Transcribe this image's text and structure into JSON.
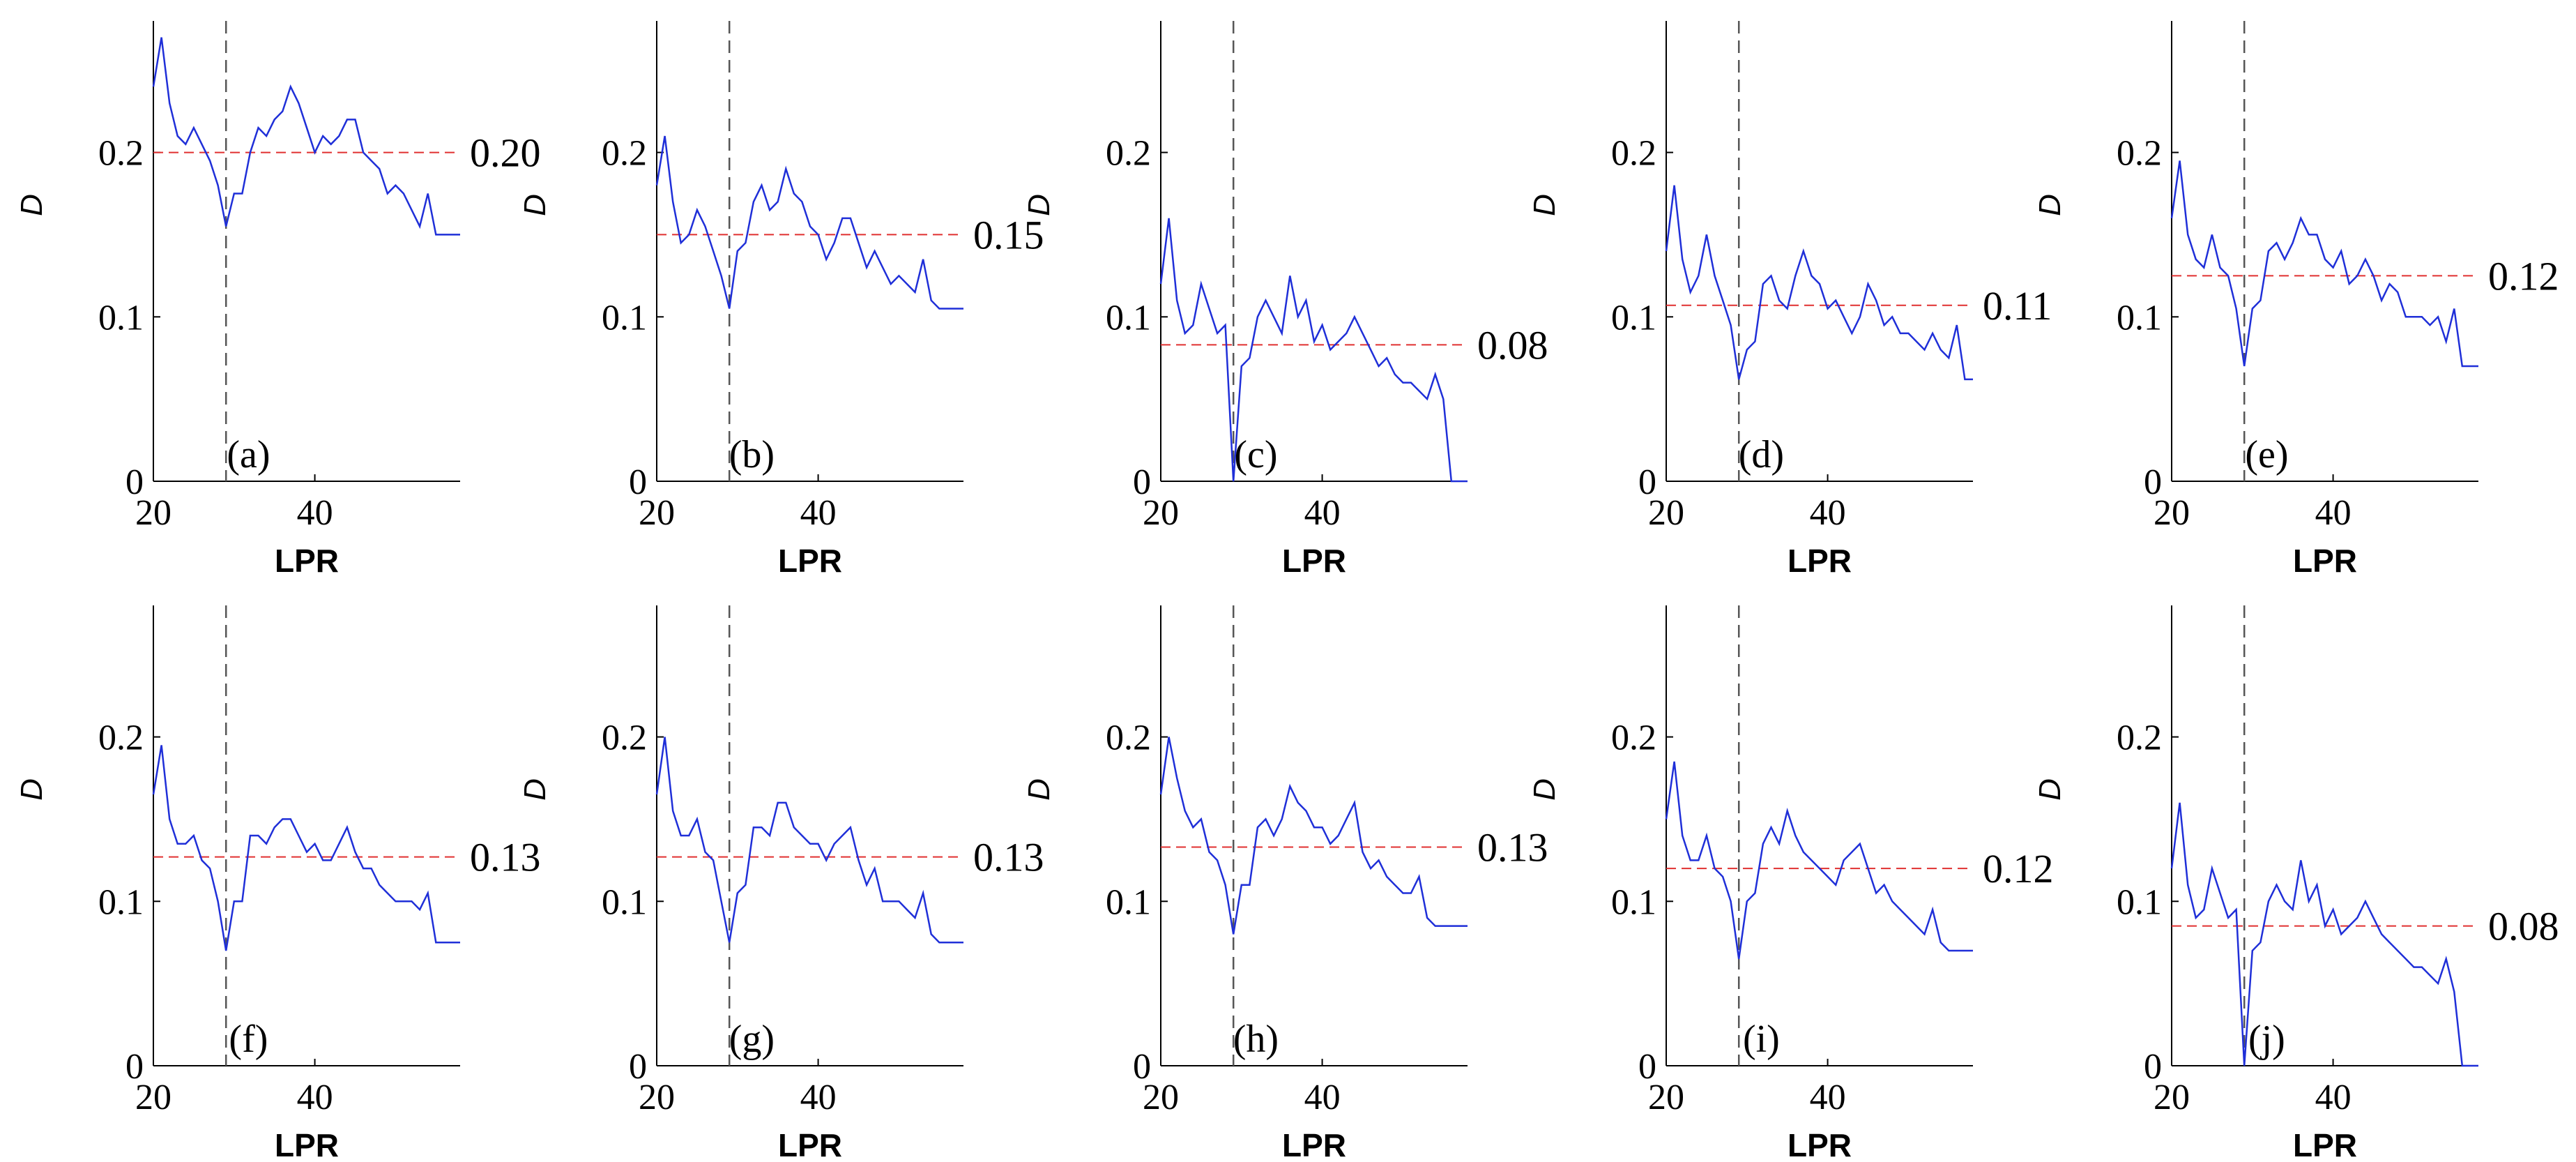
{
  "chart_data": [
    {
      "type": "line",
      "panel_label": "(a)",
      "ref_label": "0.20",
      "ref_y": 0.2,
      "vline_x": 29,
      "xlabel": "LPR",
      "ylabel": "D",
      "xlim": [
        20,
        58
      ],
      "ylim": [
        0,
        0.28
      ],
      "xticks": [
        "20",
        "40"
      ],
      "yticks": [
        "0",
        "0.1",
        "0.2"
      ],
      "xtick_values": [
        20,
        40
      ],
      "ytick_values": [
        0,
        0.1,
        0.2
      ],
      "x": [
        20,
        21,
        22,
        23,
        24,
        25,
        26,
        27,
        28,
        29,
        30,
        31,
        32,
        33,
        34,
        35,
        36,
        37,
        38,
        39,
        40,
        41,
        42,
        43,
        44,
        45,
        46,
        47,
        48,
        49,
        50,
        51,
        52,
        53,
        54,
        55,
        56,
        57,
        58
      ],
      "values": [
        0.24,
        0.27,
        0.23,
        0.21,
        0.205,
        0.215,
        0.205,
        0.195,
        0.18,
        0.155,
        0.175,
        0.175,
        0.2,
        0.215,
        0.21,
        0.22,
        0.225,
        0.24,
        0.23,
        0.215,
        0.2,
        0.21,
        0.205,
        0.21,
        0.22,
        0.22,
        0.2,
        0.195,
        0.19,
        0.175,
        0.18,
        0.175,
        0.165,
        0.155,
        0.175,
        0.15,
        0.15,
        0.15,
        0.15
      ]
    },
    {
      "type": "line",
      "panel_label": "(b)",
      "ref_label": "0.15",
      "ref_y": 0.15,
      "vline_x": 29,
      "xlabel": "LPR",
      "ylabel": "D",
      "xlim": [
        20,
        58
      ],
      "ylim": [
        0,
        0.28
      ],
      "xticks": [
        "20",
        "40"
      ],
      "yticks": [
        "0",
        "0.1",
        "0.2"
      ],
      "xtick_values": [
        20,
        40
      ],
      "ytick_values": [
        0,
        0.1,
        0.2
      ],
      "x": [
        20,
        21,
        22,
        23,
        24,
        25,
        26,
        27,
        28,
        29,
        30,
        31,
        32,
        33,
        34,
        35,
        36,
        37,
        38,
        39,
        40,
        41,
        42,
        43,
        44,
        45,
        46,
        47,
        48,
        49,
        50,
        51,
        52,
        53,
        54,
        55,
        56,
        57,
        58
      ],
      "values": [
        0.18,
        0.21,
        0.17,
        0.145,
        0.15,
        0.165,
        0.155,
        0.14,
        0.125,
        0.105,
        0.14,
        0.145,
        0.17,
        0.18,
        0.165,
        0.17,
        0.19,
        0.175,
        0.17,
        0.155,
        0.15,
        0.135,
        0.145,
        0.16,
        0.16,
        0.145,
        0.13,
        0.14,
        0.13,
        0.12,
        0.125,
        0.12,
        0.115,
        0.135,
        0.11,
        0.105,
        0.105,
        0.105,
        0.105
      ]
    },
    {
      "type": "line",
      "panel_label": "(c)",
      "ref_label": "0.08",
      "ref_y": 0.083,
      "vline_x": 29,
      "xlabel": "LPR",
      "ylabel": "D",
      "xlim": [
        20,
        58
      ],
      "ylim": [
        0,
        0.28
      ],
      "xticks": [
        "20",
        "40"
      ],
      "yticks": [
        "0",
        "0.1",
        "0.2"
      ],
      "xtick_values": [
        20,
        40
      ],
      "ytick_values": [
        0,
        0.1,
        0.2
      ],
      "x": [
        20,
        21,
        22,
        23,
        24,
        25,
        26,
        27,
        28,
        29,
        30,
        31,
        32,
        33,
        34,
        35,
        36,
        37,
        38,
        39,
        40,
        41,
        42,
        43,
        44,
        45,
        46,
        47,
        48,
        49,
        50,
        51,
        52,
        53,
        54,
        55,
        56,
        57,
        58
      ],
      "values": [
        0.12,
        0.16,
        0.11,
        0.09,
        0.095,
        0.12,
        0.105,
        0.09,
        0.095,
        0.0,
        0.07,
        0.075,
        0.1,
        0.11,
        0.1,
        0.09,
        0.125,
        0.1,
        0.11,
        0.085,
        0.095,
        0.08,
        0.085,
        0.09,
        0.1,
        0.09,
        0.08,
        0.07,
        0.075,
        0.065,
        0.06,
        0.06,
        0.055,
        0.05,
        0.065,
        0.05,
        0.0,
        0.0,
        0.0
      ]
    },
    {
      "type": "line",
      "panel_label": "(d)",
      "ref_label": "0.11",
      "ref_y": 0.107,
      "vline_x": 29,
      "xlabel": "LPR",
      "ylabel": "D",
      "xlim": [
        20,
        58
      ],
      "ylim": [
        0,
        0.28
      ],
      "xticks": [
        "20",
        "40"
      ],
      "yticks": [
        "0",
        "0.1",
        "0.2"
      ],
      "xtick_values": [
        20,
        40
      ],
      "ytick_values": [
        0,
        0.1,
        0.2
      ],
      "x": [
        20,
        21,
        22,
        23,
        24,
        25,
        26,
        27,
        28,
        29,
        30,
        31,
        32,
        33,
        34,
        35,
        36,
        37,
        38,
        39,
        40,
        41,
        42,
        43,
        44,
        45,
        46,
        47,
        48,
        49,
        50,
        51,
        52,
        53,
        54,
        55,
        56,
        57,
        58
      ],
      "values": [
        0.14,
        0.18,
        0.135,
        0.115,
        0.125,
        0.15,
        0.125,
        0.11,
        0.095,
        0.062,
        0.08,
        0.085,
        0.12,
        0.125,
        0.11,
        0.105,
        0.125,
        0.14,
        0.125,
        0.12,
        0.105,
        0.11,
        0.1,
        0.09,
        0.1,
        0.12,
        0.11,
        0.095,
        0.1,
        0.09,
        0.09,
        0.085,
        0.08,
        0.09,
        0.08,
        0.075,
        0.095,
        0.062,
        0.062
      ]
    },
    {
      "type": "line",
      "panel_label": "(e)",
      "ref_label": "0.12",
      "ref_y": 0.125,
      "vline_x": 29,
      "xlabel": "LPR",
      "ylabel": "D",
      "xlim": [
        20,
        58
      ],
      "ylim": [
        0,
        0.28
      ],
      "xticks": [
        "20",
        "40"
      ],
      "yticks": [
        "0",
        "0.1",
        "0.2"
      ],
      "xtick_values": [
        20,
        40
      ],
      "ytick_values": [
        0,
        0.1,
        0.2
      ],
      "x": [
        20,
        21,
        22,
        23,
        24,
        25,
        26,
        27,
        28,
        29,
        30,
        31,
        32,
        33,
        34,
        35,
        36,
        37,
        38,
        39,
        40,
        41,
        42,
        43,
        44,
        45,
        46,
        47,
        48,
        49,
        50,
        51,
        52,
        53,
        54,
        55,
        56,
        57,
        58
      ],
      "values": [
        0.16,
        0.195,
        0.15,
        0.135,
        0.13,
        0.15,
        0.13,
        0.125,
        0.105,
        0.07,
        0.105,
        0.11,
        0.14,
        0.145,
        0.135,
        0.145,
        0.16,
        0.15,
        0.15,
        0.135,
        0.13,
        0.14,
        0.12,
        0.125,
        0.135,
        0.125,
        0.11,
        0.12,
        0.115,
        0.1,
        0.1,
        0.1,
        0.095,
        0.1,
        0.085,
        0.105,
        0.07,
        0.07,
        0.07
      ]
    },
    {
      "type": "line",
      "panel_label": "(f)",
      "ref_label": "0.13",
      "ref_y": 0.127,
      "vline_x": 29,
      "xlabel": "LPR",
      "ylabel": "D",
      "xlim": [
        20,
        58
      ],
      "ylim": [
        0,
        0.28
      ],
      "xticks": [
        "20",
        "40"
      ],
      "yticks": [
        "0",
        "0.1",
        "0.2"
      ],
      "xtick_values": [
        20,
        40
      ],
      "ytick_values": [
        0,
        0.1,
        0.2
      ],
      "x": [
        20,
        21,
        22,
        23,
        24,
        25,
        26,
        27,
        28,
        29,
        30,
        31,
        32,
        33,
        34,
        35,
        36,
        37,
        38,
        39,
        40,
        41,
        42,
        43,
        44,
        45,
        46,
        47,
        48,
        49,
        50,
        51,
        52,
        53,
        54,
        55,
        56,
        57,
        58
      ],
      "values": [
        0.165,
        0.195,
        0.15,
        0.135,
        0.135,
        0.14,
        0.125,
        0.12,
        0.1,
        0.07,
        0.1,
        0.1,
        0.14,
        0.14,
        0.135,
        0.145,
        0.15,
        0.15,
        0.14,
        0.13,
        0.135,
        0.125,
        0.125,
        0.135,
        0.145,
        0.13,
        0.12,
        0.12,
        0.11,
        0.105,
        0.1,
        0.1,
        0.1,
        0.095,
        0.105,
        0.075,
        0.075,
        0.075,
        0.075
      ]
    },
    {
      "type": "line",
      "panel_label": "(g)",
      "ref_label": "0.13",
      "ref_y": 0.127,
      "vline_x": 29,
      "xlabel": "LPR",
      "ylabel": "D",
      "xlim": [
        20,
        58
      ],
      "ylim": [
        0,
        0.28
      ],
      "xticks": [
        "20",
        "40"
      ],
      "yticks": [
        "0",
        "0.1",
        "0.2"
      ],
      "xtick_values": [
        20,
        40
      ],
      "ytick_values": [
        0,
        0.1,
        0.2
      ],
      "x": [
        20,
        21,
        22,
        23,
        24,
        25,
        26,
        27,
        28,
        29,
        30,
        31,
        32,
        33,
        34,
        35,
        36,
        37,
        38,
        39,
        40,
        41,
        42,
        43,
        44,
        45,
        46,
        47,
        48,
        49,
        50,
        51,
        52,
        53,
        54,
        55,
        56,
        57,
        58
      ],
      "values": [
        0.165,
        0.2,
        0.155,
        0.14,
        0.14,
        0.15,
        0.13,
        0.125,
        0.1,
        0.075,
        0.105,
        0.11,
        0.145,
        0.145,
        0.14,
        0.16,
        0.16,
        0.145,
        0.14,
        0.135,
        0.135,
        0.125,
        0.135,
        0.14,
        0.145,
        0.125,
        0.11,
        0.12,
        0.1,
        0.1,
        0.1,
        0.095,
        0.09,
        0.105,
        0.08,
        0.075,
        0.075,
        0.075,
        0.075
      ]
    },
    {
      "type": "line",
      "panel_label": "(h)",
      "ref_label": "0.13",
      "ref_y": 0.133,
      "vline_x": 29,
      "xlabel": "LPR",
      "ylabel": "D",
      "xlim": [
        20,
        58
      ],
      "ylim": [
        0,
        0.28
      ],
      "xticks": [
        "20",
        "40"
      ],
      "yticks": [
        "0",
        "0.1",
        "0.2"
      ],
      "xtick_values": [
        20,
        40
      ],
      "ytick_values": [
        0,
        0.1,
        0.2
      ],
      "x": [
        20,
        21,
        22,
        23,
        24,
        25,
        26,
        27,
        28,
        29,
        30,
        31,
        32,
        33,
        34,
        35,
        36,
        37,
        38,
        39,
        40,
        41,
        42,
        43,
        44,
        45,
        46,
        47,
        48,
        49,
        50,
        51,
        52,
        53,
        54,
        55,
        56,
        57,
        58
      ],
      "values": [
        0.165,
        0.2,
        0.175,
        0.155,
        0.145,
        0.15,
        0.13,
        0.125,
        0.11,
        0.08,
        0.11,
        0.11,
        0.145,
        0.15,
        0.14,
        0.15,
        0.17,
        0.16,
        0.155,
        0.145,
        0.145,
        0.135,
        0.14,
        0.15,
        0.16,
        0.13,
        0.12,
        0.125,
        0.115,
        0.11,
        0.105,
        0.105,
        0.115,
        0.09,
        0.085,
        0.085,
        0.085,
        0.085,
        0.085
      ]
    },
    {
      "type": "line",
      "panel_label": "(i)",
      "ref_label": "0.12",
      "ref_y": 0.12,
      "vline_x": 29,
      "xlabel": "LPR",
      "ylabel": "D",
      "xlim": [
        20,
        58
      ],
      "ylim": [
        0,
        0.28
      ],
      "xticks": [
        "20",
        "40"
      ],
      "yticks": [
        "0",
        "0.1",
        "0.2"
      ],
      "xtick_values": [
        20,
        40
      ],
      "ytick_values": [
        0,
        0.1,
        0.2
      ],
      "x": [
        20,
        21,
        22,
        23,
        24,
        25,
        26,
        27,
        28,
        29,
        30,
        31,
        32,
        33,
        34,
        35,
        36,
        37,
        38,
        39,
        40,
        41,
        42,
        43,
        44,
        45,
        46,
        47,
        48,
        49,
        50,
        51,
        52,
        53,
        54,
        55,
        56,
        57,
        58
      ],
      "values": [
        0.15,
        0.185,
        0.14,
        0.125,
        0.125,
        0.14,
        0.12,
        0.115,
        0.1,
        0.065,
        0.1,
        0.105,
        0.135,
        0.145,
        0.135,
        0.155,
        0.14,
        0.13,
        0.125,
        0.12,
        0.115,
        0.11,
        0.125,
        0.13,
        0.135,
        0.12,
        0.105,
        0.11,
        0.1,
        0.095,
        0.09,
        0.085,
        0.08,
        0.095,
        0.075,
        0.07,
        0.07,
        0.07,
        0.07
      ]
    },
    {
      "type": "line",
      "panel_label": "(j)",
      "ref_label": "0.08",
      "ref_y": 0.085,
      "vline_x": 29,
      "xlabel": "LPR",
      "ylabel": "D",
      "xlim": [
        20,
        58
      ],
      "ylim": [
        0,
        0.28
      ],
      "xticks": [
        "20",
        "40"
      ],
      "yticks": [
        "0",
        "0.1",
        "0.2"
      ],
      "xtick_values": [
        20,
        40
      ],
      "ytick_values": [
        0,
        0.1,
        0.2
      ],
      "x": [
        20,
        21,
        22,
        23,
        24,
        25,
        26,
        27,
        28,
        29,
        30,
        31,
        32,
        33,
        34,
        35,
        36,
        37,
        38,
        39,
        40,
        41,
        42,
        43,
        44,
        45,
        46,
        47,
        48,
        49,
        50,
        51,
        52,
        53,
        54,
        55,
        56,
        57,
        58
      ],
      "values": [
        0.12,
        0.16,
        0.11,
        0.09,
        0.095,
        0.12,
        0.105,
        0.09,
        0.095,
        0.0,
        0.07,
        0.075,
        0.1,
        0.11,
        0.1,
        0.095,
        0.125,
        0.1,
        0.11,
        0.085,
        0.095,
        0.08,
        0.085,
        0.09,
        0.1,
        0.09,
        0.08,
        0.075,
        0.07,
        0.065,
        0.06,
        0.06,
        0.055,
        0.05,
        0.065,
        0.045,
        0.0,
        0.0,
        0.0
      ]
    }
  ]
}
